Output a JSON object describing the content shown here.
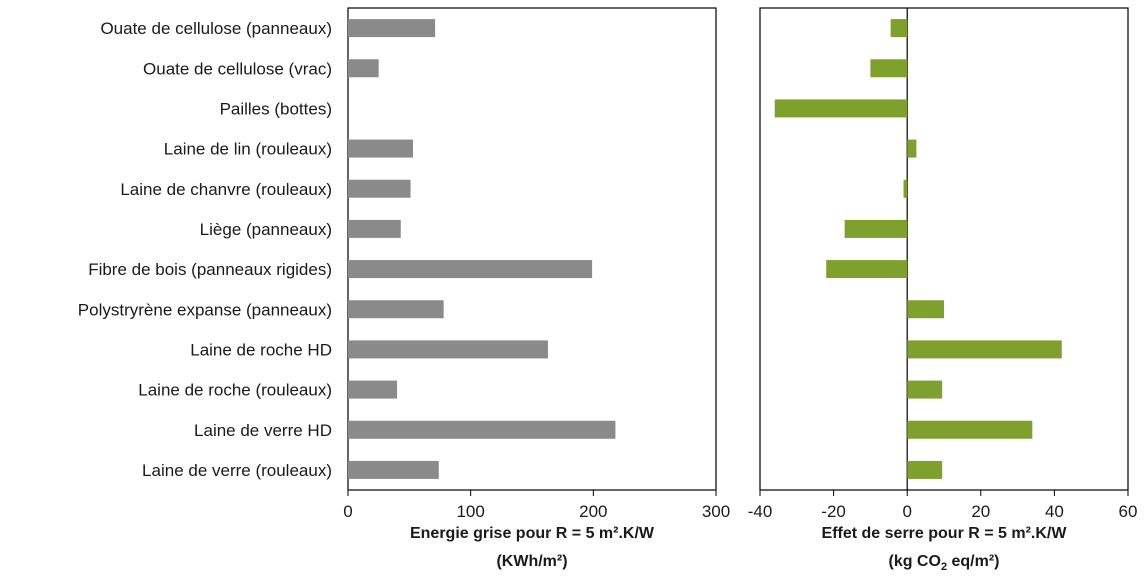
{
  "chart_data": [
    {
      "type": "bar",
      "orientation": "horizontal",
      "categories": [
        "Ouate de cellulose (panneaux)",
        "Ouate de cellulose (vrac)",
        "Pailles (bottes)",
        "Laine de lin (rouleaux)",
        "Laine de chanvre (rouleaux)",
        "Liège (panneaux)",
        "Fibre de bois (panneaux rigides)",
        "Polystryrène expanse (panneaux)",
        "Laine de roche HD",
        "Laine de roche (rouleaux)",
        "Laine de verre HD",
        "Laine de verre (rouleaux)"
      ],
      "values": [
        71,
        25,
        0,
        53,
        51,
        43,
        199,
        78,
        163,
        40,
        218,
        74
      ],
      "xlabel_line1": "Energie grise pour R = 5 m².K/W",
      "xlabel_line2": "(KWh/m²)",
      "xlim": [
        0,
        300
      ],
      "ticks": [
        0,
        100,
        200,
        300
      ],
      "grid": false,
      "color": "#8a8a8a"
    },
    {
      "type": "bar",
      "orientation": "horizontal",
      "categories": [
        "Ouate de cellulose (panneaux)",
        "Ouate de cellulose (vrac)",
        "Pailles (bottes)",
        "Laine de lin (rouleaux)",
        "Laine de chanvre (rouleaux)",
        "Liège (panneaux)",
        "Fibre de bois (panneaux rigides)",
        "Polystryrène expanse (panneaux)",
        "Laine de roche HD",
        "Laine de roche (rouleaux)",
        "Laine de verre HD",
        "Laine de verre (rouleaux)"
      ],
      "values": [
        -4.5,
        -10,
        -36,
        2.5,
        -1,
        -17,
        -22,
        10,
        42,
        9.5,
        34,
        9.5
      ],
      "xlabel_line1": "Effet de serre pour R = 5 m².K/W",
      "xlabel_line2_prefix": "(kg CO",
      "xlabel_line2_sub": "2",
      "xlabel_line2_suffix": " eq/m²)",
      "xlim": [
        -40,
        60
      ],
      "ticks": [
        -40,
        -20,
        0,
        20,
        40,
        60
      ],
      "grid": false,
      "color": "#7ea02c"
    }
  ]
}
